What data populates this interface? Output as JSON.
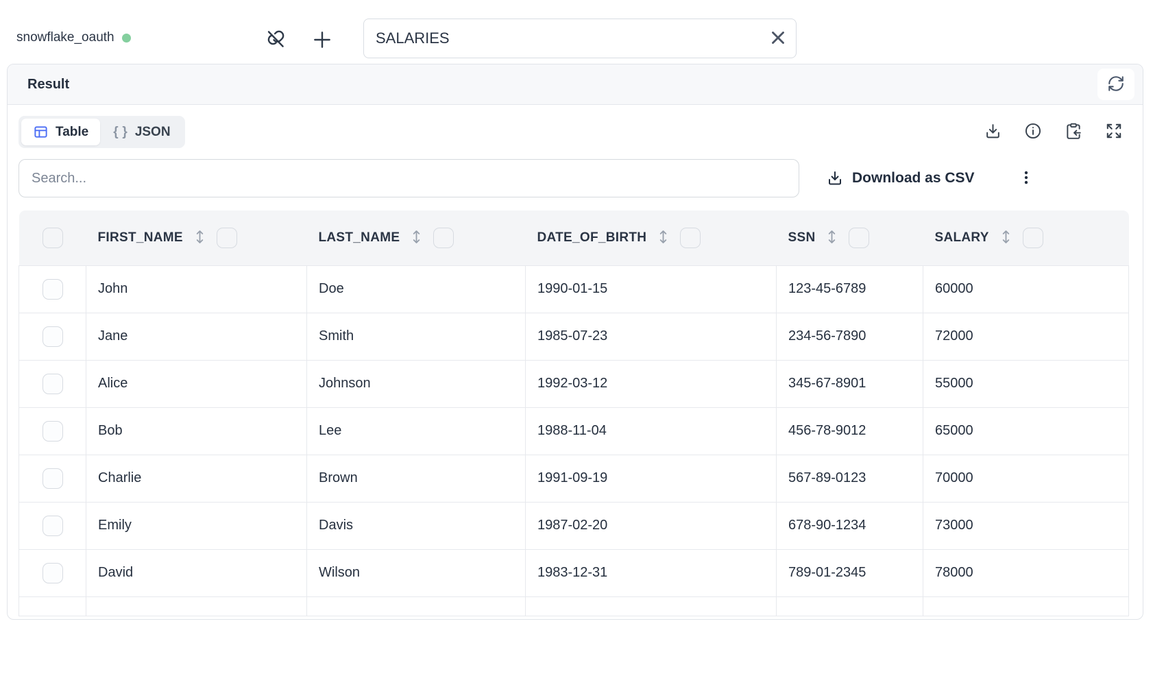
{
  "colors": {
    "accent_blue": "#4c6ef5",
    "status_green": "#84cf9e"
  },
  "topbar": {
    "connection_name": "snowflake_oauth",
    "table_input_value": "SALARIES"
  },
  "result_panel": {
    "title": "Result"
  },
  "view_tabs": [
    {
      "label": "Table",
      "icon": "table-icon",
      "active": true
    },
    {
      "label": "JSON",
      "icon": "braces-icon",
      "active": false
    }
  ],
  "toolbar_icons": [
    "download-icon",
    "info-icon",
    "paste-icon",
    "expand-icon"
  ],
  "search": {
    "placeholder": "Search..."
  },
  "actions": {
    "download_csv_label": "Download as CSV"
  },
  "table": {
    "columns": [
      "FIRST_NAME",
      "LAST_NAME",
      "DATE_OF_BIRTH",
      "SSN",
      "SALARY"
    ],
    "rows": [
      [
        "John",
        "Doe",
        "1990-01-15",
        "123-45-6789",
        "60000"
      ],
      [
        "Jane",
        "Smith",
        "1985-07-23",
        "234-56-7890",
        "72000"
      ],
      [
        "Alice",
        "Johnson",
        "1992-03-12",
        "345-67-8901",
        "55000"
      ],
      [
        "Bob",
        "Lee",
        "1988-11-04",
        "456-78-9012",
        "65000"
      ],
      [
        "Charlie",
        "Brown",
        "1991-09-19",
        "567-89-0123",
        "70000"
      ],
      [
        "Emily",
        "Davis",
        "1987-02-20",
        "678-90-1234",
        "73000"
      ],
      [
        "David",
        "Wilson",
        "1983-12-31",
        "789-01-2345",
        "78000"
      ]
    ]
  }
}
